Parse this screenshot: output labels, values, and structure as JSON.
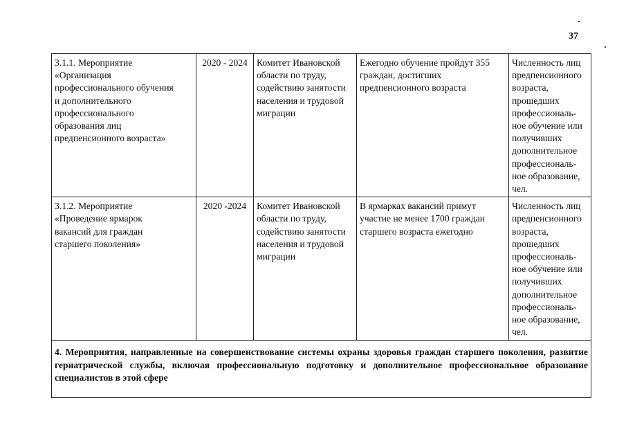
{
  "page_number": "37",
  "rows": [
    {
      "activity": "3.1.1. Мероприятие\n«Организация\nпрофессионального обучения\nи дополнительного\nпрофессионального\nобразования лиц\nпредпенсионного возраста»",
      "period": "2020 - 2024",
      "executor": "Комитет Ивановской\nобласти по труду,\nсодействию занятости\nнаселения и трудовой\nмиграции",
      "result": "Ежегодно обучение пройдут 355\nграждан, достигших\nпредпенсионного возраста",
      "indicator": "Численность лиц\nпредпенсионного\nвозраста,\nпрошедших\nпрофессиональ-\nное обучение или\nполучивших\nдополнительное\nпрофессиональ-\nное образование,\nчел."
    },
    {
      "activity": "3.1.2. Мероприятие\n«Проведение ярмарок\nвакансий для граждан\nстаршего поколения»",
      "period": "2020 -2024",
      "executor": "Комитет Ивановской\nобласти по труду,\nсодействию занятости\nнаселения и трудовой\nмиграции",
      "result": "В ярмарках вакансий примут\nучастие не менее 1700 граждан\nстаршего возраста ежегодно",
      "indicator": "Численность лиц\nпредпенсионного\nвозраста,\nпрошедших\nпрофессиональ-\nное обучение или\nполучивших\nдополнительное\nпрофессиональ-\nное образование,\nчел."
    }
  ],
  "section_heading": "4. Мероприятия, направленные на совершенствование системы охраны здоровья граждан старшего поколения, развитие гериатрической службы, включая профессиональную подготовку и дополнительное профессиональное образование специалистов в этой сфере"
}
